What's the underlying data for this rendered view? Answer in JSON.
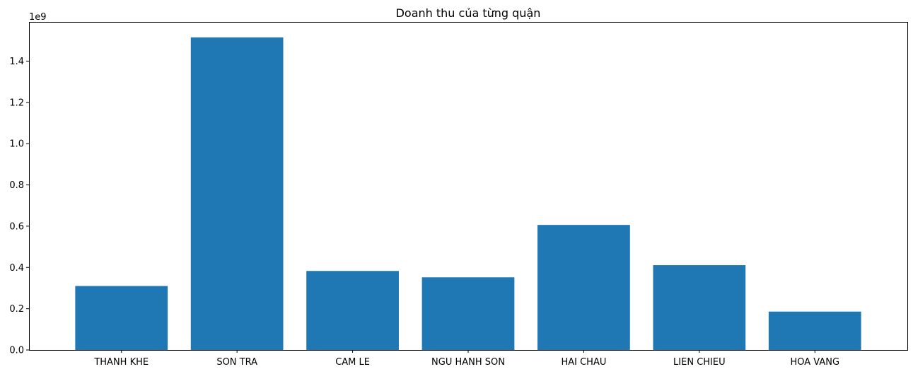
{
  "chart_data": {
    "type": "bar",
    "title": "Doanh thu của từng quận",
    "xlabel": "",
    "ylabel": "",
    "y_offset_label": "1e9",
    "categories": [
      "THANH KHE",
      "SON TRA",
      "CAM LE",
      "NGU HANH SON",
      "HAI CHAU",
      "LIEN CHIEU",
      "HOA VANG"
    ],
    "values": [
      0.31,
      1.515,
      0.383,
      0.352,
      0.606,
      0.411,
      0.186
    ],
    "value_scale": 1000000000,
    "ylim": [
      0,
      1.59
    ],
    "yticks": [
      0.0,
      0.2,
      0.4,
      0.6,
      0.8,
      1.0,
      1.2,
      1.4
    ],
    "ytick_labels": [
      "0.0",
      "0.2",
      "0.4",
      "0.6",
      "0.8",
      "1.0",
      "1.2",
      "1.4"
    ],
    "bar_color": "#1f77b4",
    "grid": false,
    "legend": "none"
  }
}
